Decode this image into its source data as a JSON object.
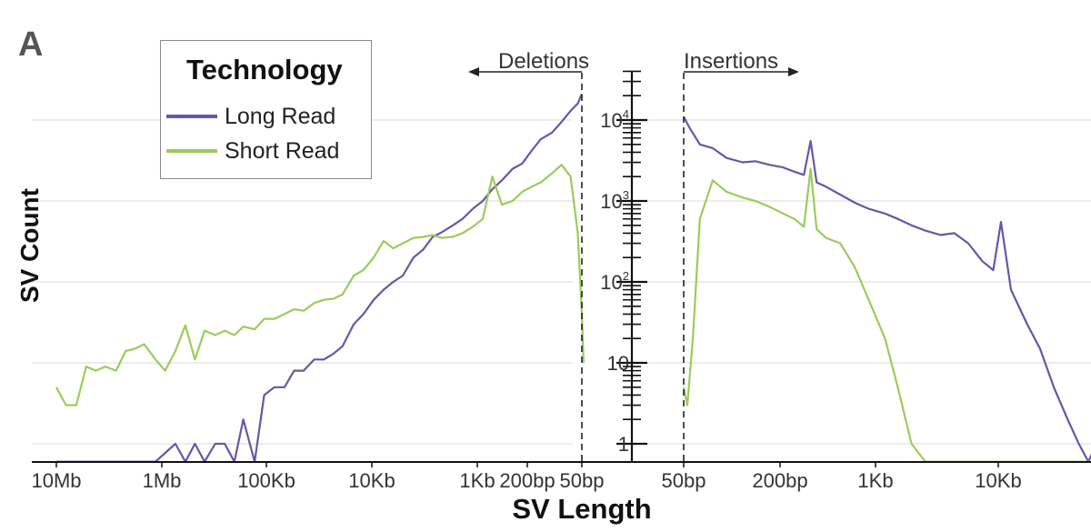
{
  "panel_label": "A",
  "legend": {
    "title": "Technology",
    "items": [
      {
        "label": "Long Read",
        "color": "#6a55a8"
      },
      {
        "label": "Short Read",
        "color": "#9ccb5c"
      }
    ]
  },
  "annotations": {
    "deletions": "Deletions",
    "insertions": "Insertions"
  },
  "chart_data": {
    "type": "line",
    "xlabel": "SV Length",
    "ylabel": "SV Count",
    "y_scale": "log",
    "grid": "horizontal",
    "legend_position": "top-left",
    "deletion_x_tick_labels": [
      "10Mb",
      "1Mb",
      "100Kb",
      "10Kb",
      "1Kb",
      "200bp",
      "50bp"
    ],
    "insertion_x_tick_labels": [
      "50bp",
      "200bp",
      "1Kb",
      "10Kb"
    ],
    "y_tick_labels": [
      {
        "base": "1",
        "exp": ""
      },
      {
        "base": "10",
        "exp": ""
      },
      {
        "base": "10",
        "exp": "2"
      },
      {
        "base": "10",
        "exp": "3"
      },
      {
        "base": "10",
        "exp": "4"
      }
    ],
    "series": [
      {
        "name": "Long Read",
        "color": "#6a55a8",
        "deletions": [
          [
            10000000,
            0.6
          ],
          [
            1000000,
            0.6
          ],
          [
            630000,
            1
          ],
          [
            500000,
            0.6
          ],
          [
            400000,
            1
          ],
          [
            320000,
            0.6
          ],
          [
            250000,
            1
          ],
          [
            200000,
            1
          ],
          [
            160000,
            0.6
          ],
          [
            130000,
            2
          ],
          [
            100000,
            0.6
          ],
          [
            80000,
            4
          ],
          [
            63000,
            5
          ],
          [
            50000,
            5
          ],
          [
            40000,
            8
          ],
          [
            32000,
            8
          ],
          [
            25000,
            11
          ],
          [
            20000,
            11
          ],
          [
            16000,
            13
          ],
          [
            13000,
            16
          ],
          [
            10000,
            30
          ],
          [
            8000,
            40
          ],
          [
            6300,
            60
          ],
          [
            5000,
            80
          ],
          [
            4000,
            100
          ],
          [
            3200,
            120
          ],
          [
            2500,
            200
          ],
          [
            2000,
            250
          ],
          [
            1600,
            360
          ],
          [
            1300,
            410
          ],
          [
            1000,
            500
          ],
          [
            800,
            600
          ],
          [
            630,
            800
          ],
          [
            500,
            1000
          ],
          [
            400,
            1400
          ],
          [
            320,
            1800
          ],
          [
            250,
            2500
          ],
          [
            200,
            2900
          ],
          [
            160,
            4200
          ],
          [
            130,
            5800
          ],
          [
            100,
            7000
          ],
          [
            80,
            9500
          ],
          [
            65,
            13000
          ],
          [
            55,
            16000
          ],
          [
            50,
            21000
          ]
        ],
        "insertions": [
          [
            50,
            11000
          ],
          [
            55,
            8000
          ],
          [
            65,
            5000
          ],
          [
            80,
            4500
          ],
          [
            100,
            3400
          ],
          [
            130,
            3000
          ],
          [
            160,
            3100
          ],
          [
            200,
            2800
          ],
          [
            250,
            2600
          ],
          [
            300,
            2300
          ],
          [
            350,
            2100
          ],
          [
            390,
            5500
          ],
          [
            430,
            1700
          ],
          [
            500,
            1500
          ],
          [
            630,
            1200
          ],
          [
            800,
            950
          ],
          [
            1000,
            800
          ],
          [
            1300,
            700
          ],
          [
            1600,
            600
          ],
          [
            2000,
            500
          ],
          [
            2500,
            430
          ],
          [
            3200,
            380
          ],
          [
            4000,
            400
          ],
          [
            5000,
            300
          ],
          [
            6300,
            180
          ],
          [
            7500,
            140
          ],
          [
            8500,
            550
          ],
          [
            10000,
            80
          ],
          [
            13000,
            30
          ],
          [
            16000,
            15
          ],
          [
            20000,
            5
          ],
          [
            25000,
            2
          ],
          [
            30000,
            1
          ],
          [
            35000,
            0.6
          ],
          [
            40000,
            1
          ],
          [
            45000,
            0.6
          ]
        ]
      },
      {
        "name": "Short Read",
        "color": "#9ccb5c",
        "deletions": [
          [
            10000000,
            5
          ],
          [
            8000000,
            3
          ],
          [
            6300000,
            3
          ],
          [
            5000000,
            9
          ],
          [
            4000000,
            8
          ],
          [
            3200000,
            9
          ],
          [
            2500000,
            8
          ],
          [
            2000000,
            14
          ],
          [
            1600000,
            15
          ],
          [
            1300000,
            17
          ],
          [
            1000000,
            11
          ],
          [
            800000,
            8
          ],
          [
            630000,
            14
          ],
          [
            500000,
            29
          ],
          [
            400000,
            11
          ],
          [
            320000,
            25
          ],
          [
            250000,
            22
          ],
          [
            200000,
            25
          ],
          [
            160000,
            22
          ],
          [
            130000,
            28
          ],
          [
            100000,
            26
          ],
          [
            80000,
            35
          ],
          [
            63000,
            35
          ],
          [
            50000,
            40
          ],
          [
            40000,
            46
          ],
          [
            32000,
            44
          ],
          [
            25000,
            55
          ],
          [
            20000,
            60
          ],
          [
            16000,
            62
          ],
          [
            13000,
            70
          ],
          [
            10000,
            120
          ],
          [
            8000,
            140
          ],
          [
            6300,
            200
          ],
          [
            5000,
            320
          ],
          [
            4000,
            260
          ],
          [
            3200,
            300
          ],
          [
            2500,
            350
          ],
          [
            2000,
            360
          ],
          [
            1600,
            380
          ],
          [
            1300,
            350
          ],
          [
            1000,
            360
          ],
          [
            800,
            400
          ],
          [
            630,
            480
          ],
          [
            500,
            600
          ],
          [
            400,
            2000
          ],
          [
            320,
            900
          ],
          [
            250,
            1000
          ],
          [
            200,
            1300
          ],
          [
            160,
            1500
          ],
          [
            130,
            1700
          ],
          [
            100,
            2200
          ],
          [
            80,
            2800
          ],
          [
            65,
            2000
          ],
          [
            55,
            400
          ],
          [
            50,
            40
          ],
          [
            48,
            10
          ]
        ],
        "insertions": [
          [
            50,
            5
          ],
          [
            53,
            3
          ],
          [
            58,
            20
          ],
          [
            65,
            600
          ],
          [
            80,
            1800
          ],
          [
            100,
            1300
          ],
          [
            130,
            1100
          ],
          [
            160,
            1000
          ],
          [
            200,
            850
          ],
          [
            250,
            700
          ],
          [
            300,
            600
          ],
          [
            350,
            480
          ],
          [
            390,
            2500
          ],
          [
            430,
            450
          ],
          [
            500,
            350
          ],
          [
            630,
            300
          ],
          [
            800,
            150
          ],
          [
            1000,
            60
          ],
          [
            1300,
            20
          ],
          [
            1600,
            5
          ],
          [
            2000,
            1
          ],
          [
            2500,
            0.6
          ],
          [
            4000,
            0.6
          ],
          [
            10000,
            0.6
          ],
          [
            20000,
            0.6
          ],
          [
            30000,
            0.6
          ],
          [
            40000,
            0.6
          ]
        ]
      }
    ]
  }
}
